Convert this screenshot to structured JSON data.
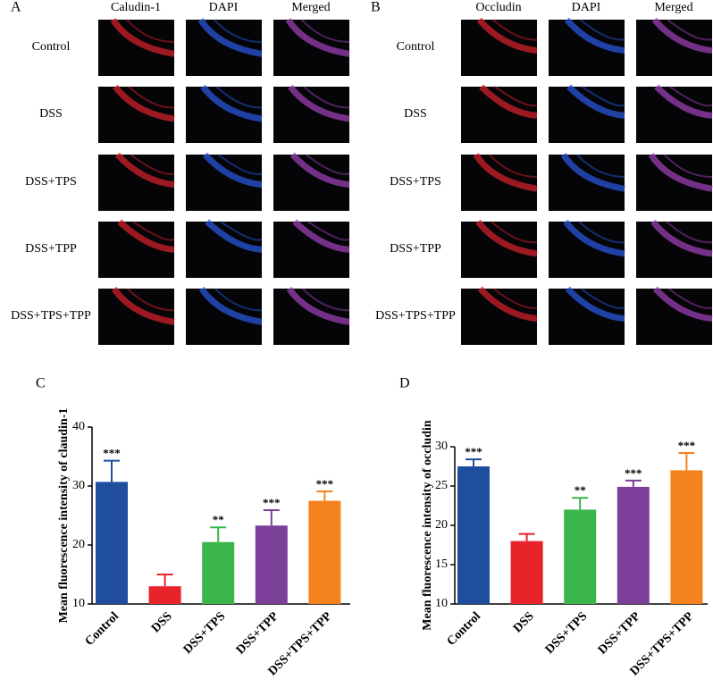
{
  "panels": [
    {
      "label": "A",
      "columns": [
        "Caludin-1",
        "DAPI",
        "Merged"
      ],
      "rows": [
        "Control",
        "DSS",
        "DSS+TPS",
        "DSS+TPP",
        "DSS+TPS+TPP"
      ]
    },
    {
      "label": "B",
      "columns": [
        "Occludin",
        "DAPI",
        "Merged"
      ],
      "rows": [
        "Control",
        "DSS",
        "DSS+TPS",
        "DSS+TPP",
        "DSS+TPS+TPP"
      ]
    }
  ],
  "chart_data": [
    {
      "type": "bar",
      "panel_label": "C",
      "y_label": "Mean fluorescence intensity of claudin-1",
      "categories": [
        "Control",
        "DSS",
        "DSS+TPS",
        "DSS+TPP",
        "DSS+TPS+TPP"
      ],
      "values": [
        30.7,
        13,
        20.5,
        23.3,
        27.5
      ],
      "errors": [
        3.6,
        2,
        2.5,
        2.6,
        1.6
      ],
      "annotations": [
        "***",
        null,
        "**",
        "***",
        "***"
      ],
      "colors": [
        "#1f4e9e",
        "#e8232a",
        "#3ab54a",
        "#7b3f9a",
        "#f4831f"
      ],
      "ylim": [
        10,
        40
      ],
      "yticks": [
        10,
        20,
        30,
        40
      ]
    },
    {
      "type": "bar",
      "panel_label": "D",
      "y_label": "Mean fluorescence intensity of occludin",
      "categories": [
        "Control",
        "DSS",
        "DSS+TPS",
        "DSS+TPP",
        "DSS+TPS+TPP"
      ],
      "values": [
        27.5,
        18,
        22,
        24.9,
        27
      ],
      "errors": [
        0.9,
        0.9,
        1.5,
        0.8,
        2.2
      ],
      "annotations": [
        "***",
        null,
        "**",
        "***",
        "***"
      ],
      "colors": [
        "#1f4e9e",
        "#e8232a",
        "#3ab54a",
        "#7b3f9a",
        "#f4831f"
      ],
      "ylim": [
        10,
        30
      ],
      "yticks": [
        10,
        15,
        20,
        25,
        30
      ]
    }
  ]
}
